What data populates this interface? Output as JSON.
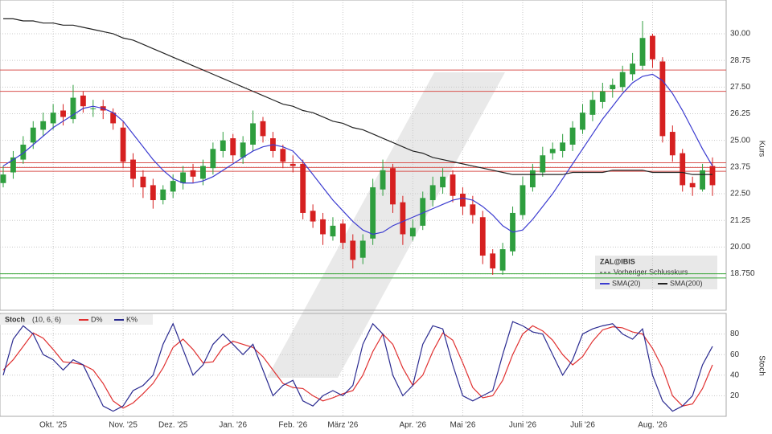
{
  "chart_data": [
    {
      "type": "candlestick",
      "symbol": "ZAL@IBIS",
      "ylabel": "Kurs",
      "categories": [
        null,
        null,
        null,
        null,
        null,
        "Okt. '25",
        null,
        null,
        null,
        null,
        null,
        null,
        "Nov. '25",
        null,
        null,
        null,
        null,
        "Dez. '25",
        null,
        null,
        null,
        null,
        null,
        "Jan. '26",
        null,
        null,
        null,
        null,
        null,
        "Feb. '26",
        null,
        null,
        null,
        null,
        "März '26",
        null,
        null,
        null,
        null,
        null,
        null,
        "Apr. '26",
        null,
        null,
        null,
        null,
        "Mai '26",
        null,
        null,
        null,
        null,
        null,
        "Juni '26",
        null,
        null,
        null,
        null,
        null,
        "Juli '26",
        null,
        null,
        null,
        null,
        null,
        null,
        "Aug. '26",
        null,
        null,
        null,
        null,
        null,
        null
      ],
      "open": [
        23.0,
        23.5,
        24.1,
        24.9,
        25.5,
        25.8,
        26.4,
        26.0,
        27.1,
        26.5,
        26.6,
        26.3,
        25.6,
        24.1,
        23.3,
        22.9,
        22.2,
        22.6,
        23.0,
        23.6,
        23.2,
        23.7,
        24.5,
        25.1,
        24.2,
        24.8,
        25.9,
        25.1,
        24.6,
        23.9,
        23.9,
        21.7,
        21.3,
        20.5,
        21.1,
        20.3,
        19.5,
        20.4,
        22.7,
        23.7,
        22.1,
        20.5,
        21.0,
        22.2,
        22.8,
        23.4,
        22.5,
        22.0,
        21.4,
        19.7,
        18.9,
        19.8,
        21.5,
        22.8,
        23.5,
        24.4,
        24.5,
        24.8,
        25.5,
        26.2,
        26.8,
        27.4,
        27.5,
        28.1,
        28.5,
        29.9,
        28.7,
        25.4,
        24.4,
        23.0,
        22.7,
        23.8
      ],
      "high": [
        23.8,
        24.5,
        25.2,
        25.9,
        26.3,
        26.7,
        26.7,
        27.6,
        27.3,
        26.9,
        26.9,
        26.5,
        25.9,
        24.4,
        23.6,
        23.2,
        22.9,
        23.4,
        23.8,
        23.9,
        24.1,
        24.9,
        25.4,
        25.3,
        25.2,
        26.4,
        26.1,
        25.4,
        24.8,
        24.3,
        24.1,
        22.0,
        21.6,
        21.4,
        21.3,
        20.6,
        20.6,
        23.2,
        24.1,
        23.9,
        22.4,
        21.3,
        22.6,
        23.3,
        23.7,
        23.6,
        22.8,
        22.4,
        21.7,
        19.9,
        20.2,
        21.9,
        23.3,
        23.9,
        24.7,
        24.9,
        25.3,
        25.9,
        26.7,
        27.3,
        27.7,
        27.9,
        28.5,
        29.1,
        30.6,
        30.0,
        28.9,
        25.7,
        24.6,
        23.3,
        23.9,
        24.2
      ],
      "low": [
        22.8,
        23.2,
        23.9,
        24.6,
        25.2,
        25.5,
        25.7,
        25.8,
        26.3,
        26.1,
        26.0,
        25.5,
        23.7,
        22.8,
        22.3,
        21.8,
        22.0,
        22.3,
        22.7,
        23.0,
        22.9,
        23.4,
        24.2,
        24.0,
        23.9,
        24.5,
        24.9,
        24.2,
        23.7,
        23.5,
        21.3,
        20.9,
        20.1,
        20.3,
        19.9,
        19.0,
        19.2,
        20.1,
        22.4,
        21.6,
        20.1,
        20.3,
        20.8,
        21.9,
        22.5,
        22.1,
        21.5,
        21.1,
        19.2,
        18.7,
        18.7,
        19.6,
        21.3,
        22.6,
        23.3,
        24.1,
        24.2,
        24.5,
        25.3,
        25.9,
        26.5,
        27.0,
        27.3,
        27.8,
        28.3,
        28.4,
        24.9,
        24.0,
        22.6,
        22.4,
        22.6,
        22.4
      ],
      "close": [
        23.4,
        24.2,
        24.8,
        25.6,
        25.9,
        26.3,
        26.1,
        27.0,
        26.6,
        26.5,
        26.4,
        25.8,
        24.0,
        23.2,
        22.8,
        22.2,
        22.7,
        23.1,
        23.5,
        23.3,
        23.8,
        24.6,
        25.0,
        24.3,
        24.9,
        25.8,
        25.2,
        24.5,
        24.0,
        23.8,
        21.6,
        21.2,
        20.6,
        21.0,
        20.2,
        19.4,
        20.3,
        22.8,
        23.6,
        22.0,
        20.6,
        20.9,
        22.3,
        22.9,
        23.3,
        22.4,
        21.9,
        21.5,
        19.6,
        19.0,
        19.9,
        21.6,
        22.9,
        23.6,
        24.3,
        24.6,
        24.9,
        25.6,
        26.3,
        26.9,
        27.3,
        27.6,
        28.2,
        28.6,
        29.8,
        28.8,
        25.2,
        24.3,
        22.9,
        22.8,
        23.6,
        22.9
      ],
      "up_color": "#2e9e3e",
      "down_color": "#d62020",
      "series": [
        {
          "name": "SMA(20)",
          "color": "#3b3bd0",
          "values": [
            23.8,
            24.1,
            24.4,
            24.8,
            25.2,
            25.6,
            25.9,
            26.2,
            26.5,
            26.6,
            26.5,
            26.3,
            25.9,
            25.3,
            24.7,
            24.1,
            23.6,
            23.2,
            23.0,
            23.0,
            23.1,
            23.3,
            23.6,
            23.9,
            24.2,
            24.5,
            24.7,
            24.8,
            24.7,
            24.5,
            24.0,
            23.4,
            22.8,
            22.2,
            21.7,
            21.2,
            20.8,
            20.6,
            20.7,
            21.0,
            21.2,
            21.4,
            21.6,
            21.8,
            22.0,
            22.2,
            22.3,
            22.2,
            21.9,
            21.5,
            21.0,
            20.7,
            20.8,
            21.3,
            21.9,
            22.5,
            23.2,
            23.9,
            24.6,
            25.3,
            26.0,
            26.6,
            27.2,
            27.7,
            28.0,
            28.1,
            27.8,
            27.2,
            26.4,
            25.5,
            24.6,
            23.8
          ]
        },
        {
          "name": "SMA(200)",
          "color": "#222222",
          "values": [
            30.7,
            30.7,
            30.6,
            30.6,
            30.5,
            30.5,
            30.4,
            30.4,
            30.3,
            30.2,
            30.1,
            30.0,
            29.8,
            29.7,
            29.5,
            29.3,
            29.1,
            28.9,
            28.7,
            28.5,
            28.3,
            28.1,
            27.9,
            27.7,
            27.5,
            27.3,
            27.1,
            26.9,
            26.7,
            26.6,
            26.4,
            26.3,
            26.1,
            25.9,
            25.8,
            25.6,
            25.5,
            25.3,
            25.1,
            24.9,
            24.7,
            24.5,
            24.4,
            24.2,
            24.1,
            24.0,
            23.9,
            23.8,
            23.7,
            23.6,
            23.5,
            23.4,
            23.4,
            23.4,
            23.4,
            23.4,
            23.4,
            23.5,
            23.5,
            23.5,
            23.5,
            23.6,
            23.6,
            23.6,
            23.6,
            23.5,
            23.5,
            23.5,
            23.5,
            23.4,
            23.4,
            23.4
          ]
        }
      ],
      "prev_close_label": "Vorheriger Schlusskurs",
      "levels": [
        {
          "value": 28.3,
          "color": "#d9534f"
        },
        {
          "value": 27.3,
          "color": "#d9534f"
        },
        {
          "value": 23.95,
          "color": "#d9534f"
        },
        {
          "value": 23.73,
          "color": "#d9534f"
        },
        {
          "value": 23.55,
          "color": "#d9534f"
        },
        {
          "value": 18.75,
          "color": "#3aa63a"
        },
        {
          "value": 18.55,
          "color": "#3aa63a"
        }
      ],
      "ylim": [
        17.04,
        31.58
      ],
      "yticks": [
        {
          "value": 18.75,
          "label": "18.750"
        },
        {
          "value": 20,
          "label": "20.00"
        },
        21.25,
        {
          "value": 22.5,
          "label": "22.50"
        },
        23.75,
        {
          "value": 25,
          "label": "25.00"
        },
        26.25,
        {
          "value": 27.5,
          "label": "27.50"
        },
        28.75,
        {
          "value": 30,
          "label": "30.00"
        }
      ],
      "grid": true
    },
    {
      "type": "line",
      "title": "Stoch",
      "params": "(10, 6, 6)",
      "ylabel": "Stoch",
      "series": [
        {
          "name": "D%",
          "color": "#e03030",
          "values": [
            45,
            55,
            68,
            81,
            76,
            65,
            53,
            52,
            50,
            45,
            32,
            15,
            8,
            13,
            22,
            32,
            47,
            67,
            75,
            65,
            52,
            53,
            67,
            73,
            70,
            67,
            58,
            45,
            32,
            28,
            27,
            20,
            15,
            18,
            22,
            25,
            40,
            63,
            80,
            70,
            47,
            30,
            40,
            63,
            81,
            74,
            52,
            28,
            18,
            20,
            35,
            60,
            80,
            88,
            83,
            74,
            60,
            50,
            58,
            73,
            84,
            87,
            86,
            82,
            80,
            66,
            47,
            20,
            10,
            12,
            27,
            50
          ]
        },
        {
          "name": "K%",
          "color": "#2a2a90",
          "values": [
            40,
            75,
            88,
            80,
            60,
            55,
            45,
            55,
            50,
            30,
            10,
            5,
            10,
            25,
            30,
            40,
            70,
            90,
            65,
            40,
            50,
            70,
            80,
            70,
            60,
            70,
            45,
            20,
            30,
            35,
            15,
            10,
            20,
            25,
            20,
            30,
            70,
            90,
            80,
            40,
            20,
            30,
            70,
            88,
            85,
            50,
            20,
            15,
            20,
            25,
            60,
            92,
            88,
            82,
            80,
            60,
            40,
            55,
            80,
            85,
            88,
            90,
            80,
            75,
            85,
            40,
            15,
            5,
            10,
            20,
            50,
            68
          ]
        }
      ],
      "ylim": [
        0,
        100
      ],
      "yticks": [
        20,
        40,
        60,
        80
      ],
      "grid": true
    }
  ]
}
